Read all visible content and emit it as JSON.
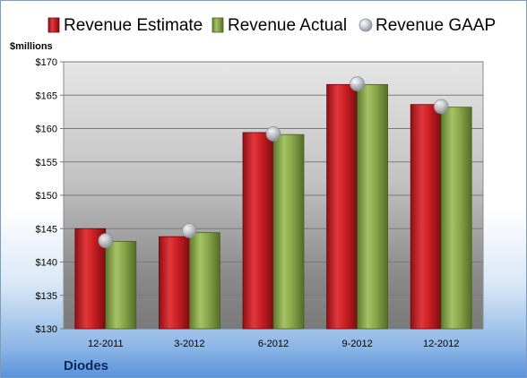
{
  "chart_data": {
    "type": "bar",
    "title": "",
    "ylabel": "$millions",
    "footer": "Diodes",
    "categories": [
      "12-2011",
      "3-2012",
      "6-2012",
      "9-2012",
      "12-2012"
    ],
    "series": [
      {
        "name": "Revenue Estimate",
        "kind": "bar",
        "color": "#cc1f24",
        "values": [
          145.0,
          143.8,
          159.4,
          166.6,
          163.6
        ]
      },
      {
        "name": "Revenue Actual",
        "kind": "bar",
        "color": "#8aa84a",
        "values": [
          143.1,
          144.4,
          159.1,
          166.6,
          163.2
        ]
      },
      {
        "name": "Revenue GAAP",
        "kind": "marker",
        "color": "#b8bcc4",
        "values": [
          143.2,
          144.7,
          159.2,
          166.7,
          163.3
        ]
      }
    ],
    "ylim": [
      130,
      170
    ],
    "yticks": [
      130,
      135,
      140,
      145,
      150,
      155,
      160,
      165,
      170
    ],
    "ytick_labels": [
      "$130",
      "$135",
      "$140",
      "$145",
      "$150",
      "$155",
      "$160",
      "$165",
      "$170"
    ],
    "grid": true,
    "legend": "top"
  }
}
